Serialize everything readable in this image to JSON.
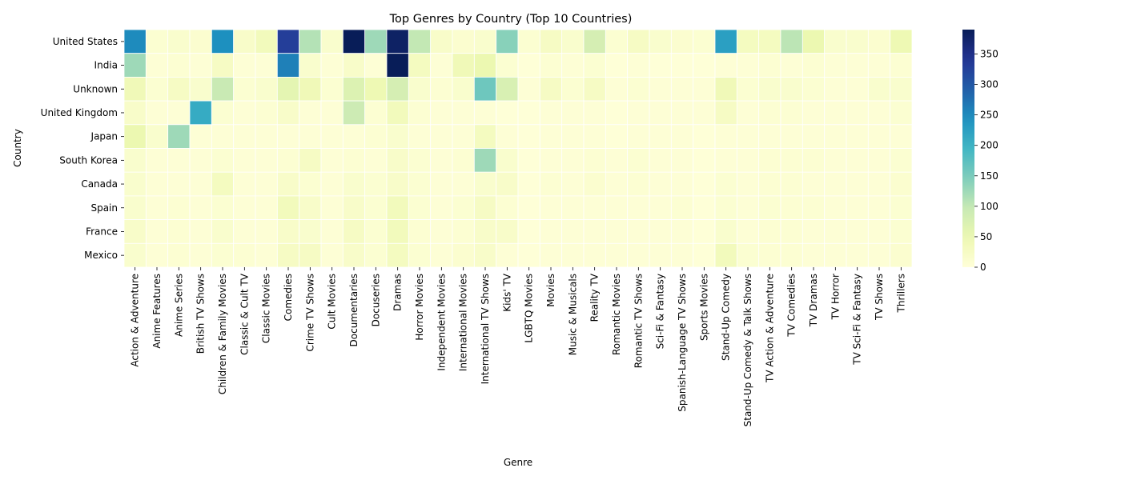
{
  "chart_data": {
    "type": "heatmap",
    "title": "Top Genres by Country (Top 10 Countries)",
    "xlabel": "Genre",
    "ylabel": "Country",
    "rows": [
      "United States",
      "India",
      "Unknown",
      "United Kingdom",
      "Japan",
      "South Korea",
      "Canada",
      "Spain",
      "France",
      "Mexico"
    ],
    "columns": [
      "Action & Adventure",
      "Anime Features",
      "Anime Series",
      "British TV Shows",
      "Children & Family Movies",
      "Classic & Cult TV",
      "Classic Movies",
      "Comedies",
      "Crime TV Shows",
      "Cult Movies",
      "Documentaries",
      "Docuseries",
      "Dramas",
      "Horror Movies",
      "Independent Movies",
      "International Movies",
      "International TV Shows",
      "Kids' TV",
      "LGBTQ Movies",
      "Movies",
      "Music & Musicals",
      "Reality TV",
      "Romantic Movies",
      "Romantic TV Shows",
      "Sci-Fi & Fantasy",
      "Spanish-Language TV Shows",
      "Sports Movies",
      "Stand-Up Comedy",
      "Stand-Up Comedy & Talk Shows",
      "TV Action & Adventure",
      "TV Comedies",
      "TV Dramas",
      "TV Horror",
      "TV Sci-Fi & Fantasy",
      "TV Shows",
      "Thrillers"
    ],
    "values": [
      [
        250,
        10,
        15,
        12,
        245,
        20,
        35,
        330,
        110,
        15,
        390,
        125,
        380,
        100,
        20,
        12,
        15,
        140,
        10,
        25,
        15,
        80,
        10,
        25,
        15,
        12,
        10,
        225,
        30,
        30,
        105,
        50,
        15,
        15,
        12,
        45
      ],
      [
        125,
        5,
        8,
        5,
        25,
        5,
        5,
        260,
        15,
        5,
        20,
        5,
        390,
        30,
        5,
        40,
        50,
        10,
        2,
        8,
        5,
        10,
        2,
        5,
        2,
        2,
        2,
        5,
        5,
        8,
        5,
        8,
        5,
        5,
        5,
        8
      ],
      [
        40,
        10,
        25,
        15,
        95,
        10,
        15,
        60,
        40,
        10,
        70,
        45,
        80,
        15,
        8,
        15,
        160,
        75,
        5,
        25,
        10,
        25,
        5,
        10,
        5,
        5,
        5,
        40,
        10,
        15,
        15,
        10,
        5,
        5,
        15,
        15
      ],
      [
        20,
        5,
        5,
        210,
        10,
        5,
        8,
        20,
        5,
        5,
        90,
        8,
        35,
        8,
        5,
        5,
        5,
        2,
        2,
        5,
        5,
        5,
        2,
        5,
        5,
        5,
        5,
        25,
        5,
        8,
        8,
        5,
        5,
        5,
        5,
        10
      ],
      [
        50,
        15,
        125,
        5,
        5,
        5,
        5,
        5,
        5,
        5,
        5,
        8,
        15,
        5,
        5,
        5,
        30,
        5,
        2,
        5,
        5,
        5,
        2,
        5,
        5,
        5,
        2,
        5,
        5,
        5,
        5,
        5,
        5,
        5,
        5,
        5
      ],
      [
        15,
        5,
        5,
        5,
        10,
        5,
        5,
        8,
        25,
        5,
        8,
        5,
        20,
        10,
        5,
        8,
        125,
        15,
        2,
        5,
        5,
        8,
        5,
        10,
        5,
        5,
        2,
        5,
        5,
        8,
        8,
        8,
        5,
        5,
        5,
        10
      ],
      [
        15,
        5,
        5,
        5,
        30,
        5,
        5,
        20,
        10,
        5,
        15,
        10,
        20,
        10,
        5,
        5,
        15,
        20,
        2,
        8,
        5,
        12,
        5,
        8,
        5,
        5,
        2,
        10,
        5,
        8,
        8,
        5,
        5,
        5,
        5,
        12
      ],
      [
        15,
        5,
        8,
        5,
        10,
        5,
        5,
        35,
        20,
        5,
        20,
        10,
        35,
        10,
        5,
        10,
        25,
        8,
        2,
        5,
        5,
        5,
        5,
        5,
        5,
        8,
        2,
        10,
        5,
        10,
        8,
        8,
        5,
        5,
        5,
        10
      ],
      [
        20,
        5,
        8,
        5,
        15,
        5,
        5,
        20,
        15,
        5,
        25,
        10,
        35,
        8,
        5,
        8,
        20,
        20,
        2,
        5,
        5,
        5,
        5,
        5,
        5,
        5,
        2,
        15,
        5,
        8,
        8,
        5,
        5,
        5,
        5,
        10
      ],
      [
        15,
        5,
        8,
        5,
        10,
        8,
        5,
        25,
        25,
        5,
        20,
        10,
        30,
        10,
        5,
        12,
        20,
        5,
        2,
        5,
        5,
        5,
        5,
        5,
        5,
        5,
        2,
        35,
        10,
        8,
        8,
        5,
        5,
        5,
        5,
        12
      ]
    ],
    "colormap": "YlGnBu",
    "vmin": 0,
    "vmax": 390,
    "colorbar_ticks": [
      0,
      50,
      100,
      150,
      200,
      250,
      300,
      350
    ],
    "grid": true
  }
}
